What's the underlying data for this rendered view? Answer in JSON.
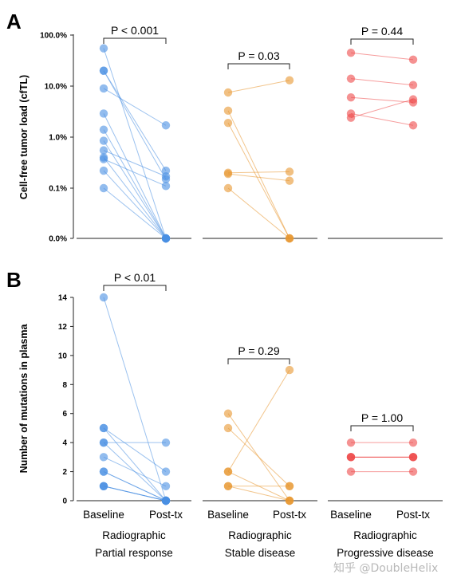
{
  "figure": {
    "watermark": "知乎 @DoubleHelix",
    "group_labels": [
      {
        "line1": "Radiographic",
        "line2": "Partial response"
      },
      {
        "line1": "Radiographic",
        "line2": "Stable disease"
      },
      {
        "line1": "Radiographic",
        "line2": "Progressive disease"
      }
    ],
    "timepoint_labels": [
      "Baseline",
      "Post-tx"
    ],
    "colors": {
      "partial_response": "#4a90e2",
      "stable_disease": "#e8962e",
      "progressive_disease": "#ef4a4a"
    }
  },
  "chart_data": [
    {
      "panel": "A",
      "type": "scatter",
      "subtype": "paired-dot",
      "ylabel": "Cell-free tumor load (cfTL)",
      "yscale": "log (0.0% plotted at axis floor)",
      "ytick_labels": [
        "0.0%",
        "0.1%",
        "1.0%",
        "10.0%",
        "100.0%"
      ],
      "ylim": [
        0,
        100
      ],
      "groups": [
        {
          "name": "Radiographic Partial response",
          "pvalue_label": "P < 0.001",
          "pairs": [
            [
              55,
              0
            ],
            [
              20,
              0.15
            ],
            [
              20,
              0.22
            ],
            [
              9,
              1.7
            ],
            [
              2.9,
              0
            ],
            [
              1.4,
              0
            ],
            [
              0.85,
              0
            ],
            [
              0.55,
              0.17
            ],
            [
              0.4,
              0
            ],
            [
              0.37,
              0.11
            ],
            [
              0.22,
              0
            ],
            [
              0.1,
              0
            ]
          ]
        },
        {
          "name": "Radiographic Stable disease",
          "pvalue_label": "P = 0.03",
          "pairs": [
            [
              7.5,
              13
            ],
            [
              3.3,
              0
            ],
            [
              1.9,
              0
            ],
            [
              0.2,
              0.21
            ],
            [
              0.19,
              0.14
            ],
            [
              0.1,
              0
            ]
          ]
        },
        {
          "name": "Radiographic Progressive disease",
          "pvalue_label": "P = 0.44",
          "pairs": [
            [
              45,
              33
            ],
            [
              14,
              10.5
            ],
            [
              6,
              4.8
            ],
            [
              2.9,
              1.7
            ],
            [
              2.4,
              5.5
            ]
          ]
        }
      ]
    },
    {
      "panel": "B",
      "type": "scatter",
      "subtype": "paired-dot",
      "ylabel": "Number of mutations in plasma",
      "ytick_labels": [
        "0",
        "2",
        "4",
        "6",
        "8",
        "10",
        "12",
        "14"
      ],
      "ylim": [
        0,
        14
      ],
      "groups": [
        {
          "name": "Radiographic Partial response",
          "pvalue_label": "P < 0.01",
          "pairs": [
            [
              14,
              0
            ],
            [
              5,
              2
            ],
            [
              5,
              0
            ],
            [
              4,
              4
            ],
            [
              4,
              0
            ],
            [
              3,
              1
            ],
            [
              2,
              0
            ],
            [
              2,
              0
            ],
            [
              1,
              0
            ],
            [
              1,
              0
            ],
            [
              1,
              0
            ]
          ]
        },
        {
          "name": "Radiographic Stable disease",
          "pvalue_label": "P = 0.29",
          "pairs": [
            [
              6,
              0
            ],
            [
              5,
              1
            ],
            [
              2,
              9
            ],
            [
              2,
              0
            ],
            [
              1,
              1
            ],
            [
              1,
              0
            ]
          ]
        },
        {
          "name": "Radiographic Progressive disease",
          "pvalue_label": "P = 1.00",
          "pairs": [
            [
              4,
              4
            ],
            [
              3,
              3
            ],
            [
              3,
              3
            ],
            [
              3,
              3
            ],
            [
              2,
              2
            ]
          ]
        }
      ]
    }
  ]
}
